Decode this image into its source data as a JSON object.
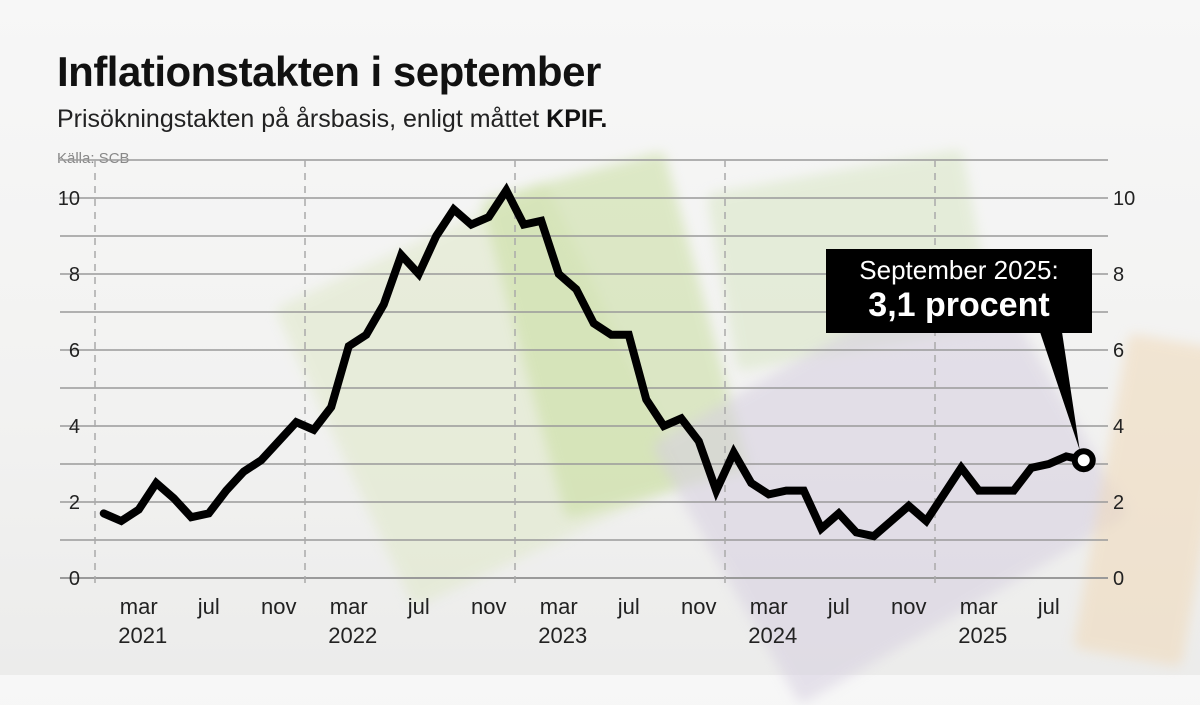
{
  "title": "Inflationstakten i september",
  "subtitle": "Prisökningstakten på årsbasis, enligt måttet",
  "subtitle_bold": "KPIF.",
  "source": "Källa: SCB",
  "annotation": {
    "line1": "September 2025:",
    "line2": "3,1 procent"
  },
  "chart_data": {
    "type": "line",
    "title": "Inflationstakten i september",
    "xlabel": "",
    "ylabel": "",
    "ylim": [
      0,
      11
    ],
    "yticks": [
      0,
      2,
      4,
      6,
      8,
      10
    ],
    "y_axis_both_sides": true,
    "grid": true,
    "x_start": "2021-01",
    "x_end": "2025-09",
    "x_month_labels": [
      "mar",
      "jul",
      "nov"
    ],
    "x_year_labels": [
      "2021",
      "2022",
      "2023",
      "2024",
      "2025"
    ],
    "line_color": "#000000",
    "series": [
      {
        "values": [
          1.7,
          1.5,
          1.8,
          2.5,
          2.1,
          1.6,
          1.7,
          2.3,
          2.8,
          3.1,
          3.6,
          4.1,
          3.9,
          4.5,
          6.1,
          6.4,
          7.2,
          8.5,
          8.0,
          9.0,
          9.7,
          9.3,
          9.5,
          10.2,
          9.3,
          9.4,
          8.0,
          7.6,
          6.7,
          6.4,
          6.4,
          4.7,
          4.0,
          4.2,
          3.6,
          2.3,
          3.3,
          2.5,
          2.2,
          2.3,
          2.3,
          1.3,
          1.7,
          1.2,
          1.1,
          1.5,
          1.9,
          1.5,
          2.2,
          2.9,
          2.3,
          2.3,
          2.3,
          2.9,
          3.0,
          3.2,
          3.1
        ]
      }
    ],
    "highlight": {
      "x": "2025-09",
      "value": 3.1
    }
  }
}
